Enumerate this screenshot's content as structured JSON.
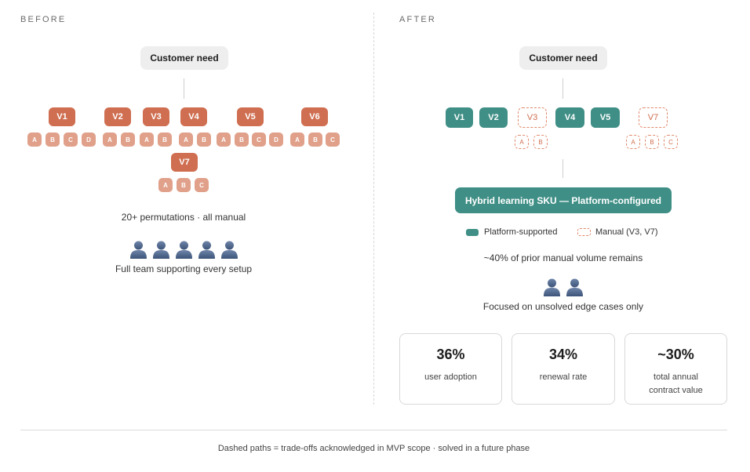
{
  "before": {
    "label": "BEFORE",
    "customer_need": "Customer need",
    "versions": [
      {
        "label": "V1",
        "subs": [
          "A",
          "B",
          "C",
          "D"
        ]
      },
      {
        "label": "V2",
        "subs": [
          "A",
          "B"
        ]
      },
      {
        "label": "V3",
        "subs": [
          "A",
          "B"
        ]
      },
      {
        "label": "V4",
        "subs": [
          "A",
          "B"
        ]
      },
      {
        "label": "V5",
        "subs": [
          "A",
          "B",
          "C",
          "D"
        ]
      },
      {
        "label": "V6",
        "subs": [
          "A",
          "B",
          "C"
        ]
      },
      {
        "label": "V7",
        "subs": [
          "A",
          "B",
          "C"
        ]
      }
    ],
    "permutations_text": "20+ permutations · all manual",
    "team_text": "Full team supporting every setup",
    "people_count": 5
  },
  "after": {
    "label": "AFTER",
    "customer_need": "Customer need",
    "versions": [
      {
        "label": "V1",
        "kind": "platform"
      },
      {
        "label": "V2",
        "kind": "platform"
      },
      {
        "label": "V3",
        "kind": "manual",
        "subs": [
          "A",
          "B"
        ]
      },
      {
        "label": "V4",
        "kind": "platform"
      },
      {
        "label": "V5",
        "kind": "platform"
      },
      {
        "label": "V7",
        "kind": "manual",
        "subs": [
          "A",
          "B",
          "C"
        ]
      }
    ],
    "hybrid_label": "Hybrid learning SKU — Platform-configured",
    "legend_platform": "Platform-supported",
    "legend_manual": "Manual (V3, V7)",
    "remains_text": "~40% of prior manual volume remains",
    "focus_text": "Focused on unsolved edge cases only",
    "people_count": 2,
    "metrics": [
      {
        "value": "36%",
        "label": "user adoption"
      },
      {
        "value": "34%",
        "label": "renewal rate"
      },
      {
        "value": "~30%",
        "label": "total annual contract value"
      }
    ]
  },
  "footer": "Dashed paths = trade-offs acknowledged in MVP scope · solved in a future phase",
  "colors": {
    "orange": "#cf6e50",
    "orange_light": "#e0a08a",
    "teal": "#3f8f86"
  },
  "icons": {
    "person": "person-icon"
  }
}
